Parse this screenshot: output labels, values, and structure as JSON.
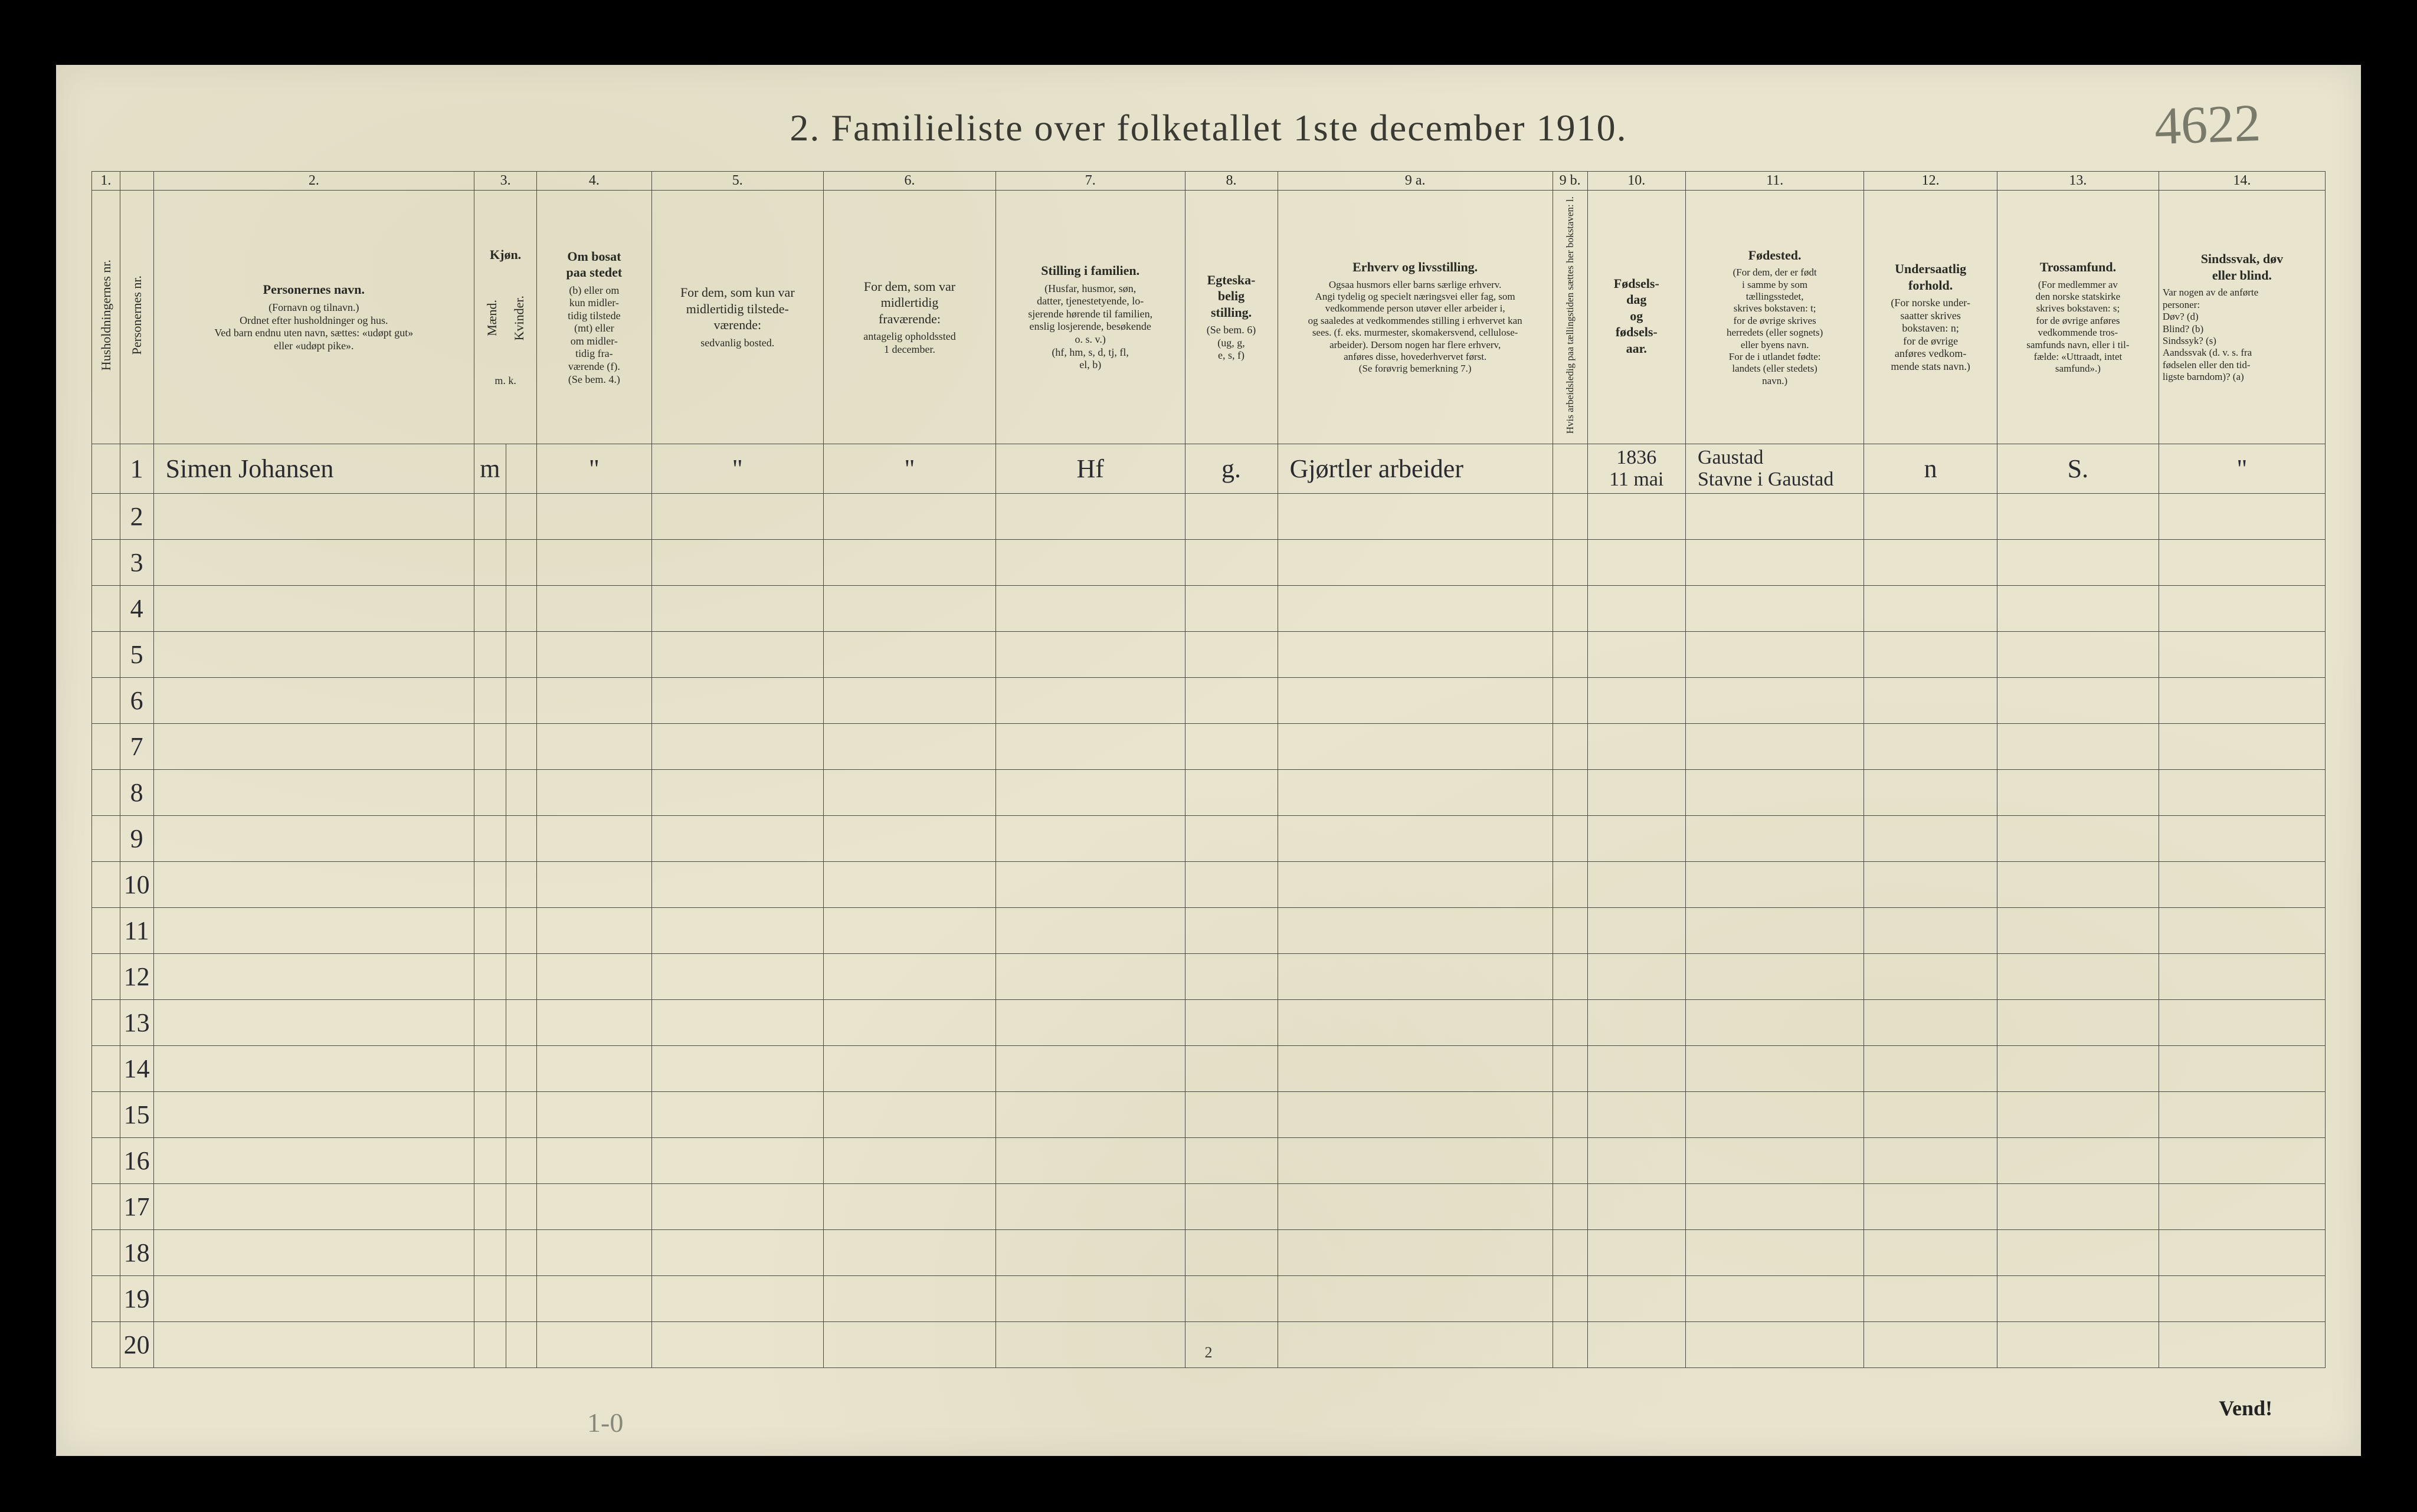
{
  "title": "2.   Familieliste over folketallet 1ste december 1910.",
  "page_note": "4622",
  "footer_page": "2",
  "vend": "Vend!",
  "bottom_pencil": "1-0",
  "colnums": [
    "1.",
    "",
    "2.",
    "3.",
    "",
    "4.",
    "5.",
    "6.",
    "7.",
    "8.",
    "9 a.",
    "9 b.",
    "10.",
    "11.",
    "12.",
    "13.",
    "14."
  ],
  "headers": {
    "c1": "Husholdningernes nr.",
    "c1b": "Personernes nr.",
    "c2_title": "Personernes navn.",
    "c2_sub": "(Fornavn og tilnavn.)\nOrdnet efter husholdninger og hus.\nVed barn endnu uten navn, sættes: «udøpt gut»\neller «udøpt pike».",
    "c3_title": "Kjøn.",
    "c3a": "Mænd.",
    "c3b": "Kvinder.",
    "c3_sub": "m.  k.",
    "c4_title": "Om bosat\npaa stedet",
    "c4_sub": "(b) eller om\nkun midler-\ntidig tilstede\n(mt) eller\nom midler-\ntidig fra-\nværende (f).\n(Se bem. 4.)",
    "c5_title": "For dem, som kun var\nmidlertidig tilstede-\nværende:",
    "c5_sub": "sedvanlig bosted.",
    "c6_title": "For dem, som var\nmidlertidig\nfraværende:",
    "c6_sub": "antagelig opholdssted\n1 december.",
    "c7_title": "Stilling i familien.",
    "c7_sub": "(Husfar, husmor, søn,\ndatter, tjenestetyende, lo-\nsjerende hørende til familien,\nenslig losjerende, besøkende\no. s. v.)\n(hf, hm, s, d, tj, fl,\nel, b)",
    "c8_title": "Egteska-\nbelig\nstilling.",
    "c8_sub": "(Se bem. 6)\n(ug, g,\ne, s, f)",
    "c9a_title": "Erhverv og livsstilling.",
    "c9a_sub": "Ogsaa husmors eller barns særlige erhverv.\nAngi tydelig og specielt næringsvei eller fag, som\nvedkommende person utøver eller arbeider i,\nog saaledes at vedkommendes stilling i erhvervet kan\nsees. (f. eks. murmester, skomakersvend, cellulose-\narbeider). Dersom nogen har flere erhverv,\nanføres disse, hovederhvervet først.\n(Se forøvrig bemerkning 7.)",
    "c9b": "Hvis arbeidsledig\npaa tællingstiden sættes\nher bokstaven: l.",
    "c10_title": "Fødsels-\ndag\nog\nfødsels-\naar.",
    "c11_title": "Fødested.",
    "c11_sub": "(For dem, der er født\ni samme by som\ntællingsstedet,\nskrives bokstaven: t;\nfor de øvrige skrives\nherredets (eller sognets)\neller byens navn.\nFor de i utlandet fødte:\nlandets (eller stedets)\nnavn.)",
    "c12_title": "Undersaatlig\nforhold.",
    "c12_sub": "(For norske under-\nsaatter skrives\nbokstaven: n;\nfor de øvrige\nanføres vedkom-\nmende stats navn.)",
    "c13_title": "Trossamfund.",
    "c13_sub": "(For medlemmer av\nden norske statskirke\nskrives bokstaven: s;\nfor de øvrige anføres\nvedkommende tros-\nsamfunds navn, eller i til-\nfælde: «Uttraadt, intet\nsamfund».)",
    "c14_title": "Sindssvak, døv\neller blind.",
    "c14_sub": "Var nogen av de anførte\npersoner:\nDøv?          (d)\nBlind?         (b)\nSindssyk?   (s)\nAandssvak (d. v. s. fra\nfødselen eller den tid-\nligste barndom)?  (a)"
  },
  "rows": [
    {
      "num": "1",
      "name": "Simen  Johansen",
      "m": "m",
      "k": "",
      "b": "\"",
      "mt": "\"",
      "fr": "\"",
      "fam": "Hf",
      "eg": "g.",
      "erv": "Gjørtler arbeider",
      "l": "",
      "fdag": "1836\n11 mai",
      "fsted": "Gaustad\nStavne i Gaustad",
      "nat": "n",
      "tro": "S.",
      "sind": "\""
    }
  ],
  "blank_rows": 19
}
